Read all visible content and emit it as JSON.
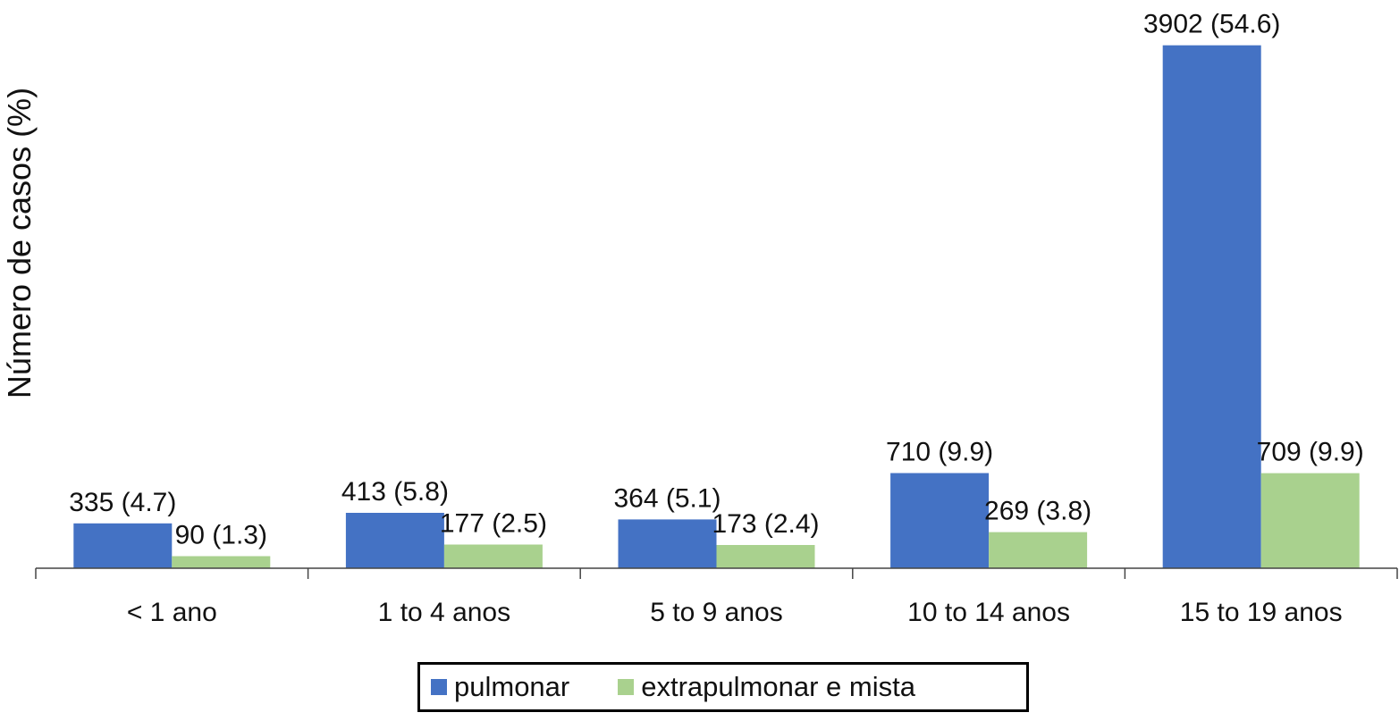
{
  "chart_data": {
    "type": "bar",
    "ylabel": "Número de casos (%)",
    "xlabel": "",
    "categories": [
      "< 1 ano",
      "1 to 4 anos",
      "5 to 9 anos",
      "10 to 14 anos",
      "15 to 19 anos"
    ],
    "series": [
      {
        "name": "pulmonar",
        "color": "#4472c4",
        "values": [
          335,
          413,
          364,
          710,
          3902
        ],
        "labels": [
          "335 (4.7)",
          "413 (5.8)",
          "364 (5.1)",
          "710 (9.9)",
          "3902 (54.6)"
        ]
      },
      {
        "name": "extrapulmonar e mista",
        "color": "#a9d18e",
        "values": [
          90,
          177,
          173,
          269,
          709
        ],
        "labels": [
          "90 (1.3)",
          "177 (2.5)",
          "173 (2.4)",
          "269 (3.8)",
          "709 (9.9)"
        ]
      }
    ],
    "ylim": [
      0,
      4000
    ],
    "grid": false,
    "legend_position": "bottom"
  }
}
